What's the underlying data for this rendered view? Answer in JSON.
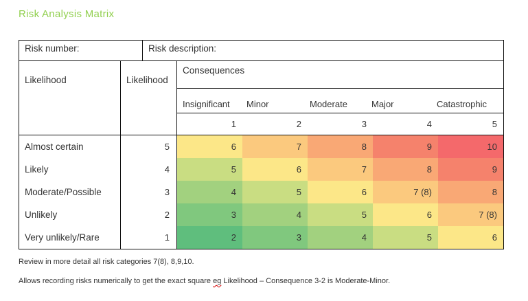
{
  "title": "Risk Analysis Matrix",
  "colors": {
    "title_green": "#92d050",
    "border_black": "#111111",
    "spellcheck_red": "#d40000",
    "scale": {
      "2": "#5fbe7d",
      "3": "#80c87e",
      "4": "#a2d17f",
      "5": "#c9dd82",
      "6": "#fce788",
      "7": "#fbc97e",
      "8": "#f9a875",
      "9": "#f5826c",
      "10": "#f4696b"
    }
  },
  "form": {
    "risk_number_label": "Risk number:",
    "risk_number_value": "",
    "risk_description_label": "Risk description:",
    "risk_description_value": ""
  },
  "matrix": {
    "likelihood_row_label": "Likelihood",
    "likelihood_col_label": "Likelihood",
    "consequences_label": "Consequences",
    "consequence_categories": [
      "Insignificant",
      "Minor",
      "Moderate",
      "Major",
      "Catastrophic"
    ],
    "consequence_levels": [
      "1",
      "2",
      "3",
      "4",
      "5"
    ],
    "rows": [
      {
        "label": "Almost certain",
        "likelihood": "5",
        "cells": [
          {
            "text": "6",
            "color": "#fce788"
          },
          {
            "text": "7",
            "color": "#fbc97e"
          },
          {
            "text": "8",
            "color": "#f9a875"
          },
          {
            "text": "9",
            "color": "#f5826c"
          },
          {
            "text": "10",
            "color": "#f4696b"
          }
        ]
      },
      {
        "label": "Likely",
        "likelihood": "4",
        "cells": [
          {
            "text": "5",
            "color": "#c9dd82"
          },
          {
            "text": "6",
            "color": "#fce788"
          },
          {
            "text": "7",
            "color": "#fbc97e"
          },
          {
            "text": "8",
            "color": "#f9a875"
          },
          {
            "text": "9",
            "color": "#f5826c"
          }
        ]
      },
      {
        "label": "Moderate/Possible",
        "likelihood": "3",
        "cells": [
          {
            "text": "4",
            "color": "#a2d17f"
          },
          {
            "text": "5",
            "color": "#c9dd82"
          },
          {
            "text": "6",
            "color": "#fce788"
          },
          {
            "text": "7 (8)",
            "color": "#fbc97e"
          },
          {
            "text": "8",
            "color": "#f9a875"
          }
        ]
      },
      {
        "label": "Unlikely",
        "likelihood": "2",
        "cells": [
          {
            "text": "3",
            "color": "#80c87e"
          },
          {
            "text": "4",
            "color": "#a2d17f"
          },
          {
            "text": "5",
            "color": "#c9dd82"
          },
          {
            "text": "6",
            "color": "#fce788"
          },
          {
            "text": "7 (8)",
            "color": "#fbc97e"
          }
        ]
      },
      {
        "label": "Very unlikely/Rare",
        "likelihood": "1",
        "cells": [
          {
            "text": "2",
            "color": "#5fbe7d"
          },
          {
            "text": "3",
            "color": "#80c87e"
          },
          {
            "text": "4",
            "color": "#a2d17f"
          },
          {
            "text": "5",
            "color": "#c9dd82"
          },
          {
            "text": "6",
            "color": "#fce788"
          }
        ]
      }
    ]
  },
  "notes": {
    "review": "Review in more detail all risk categories 7(8), 8,9,10.",
    "recording": {
      "before": "Allows recording risks numerically to get the exact square ",
      "flagged": "eg",
      "after": " Likelihood – Consequence 3-2 is Moderate-Minor."
    }
  }
}
